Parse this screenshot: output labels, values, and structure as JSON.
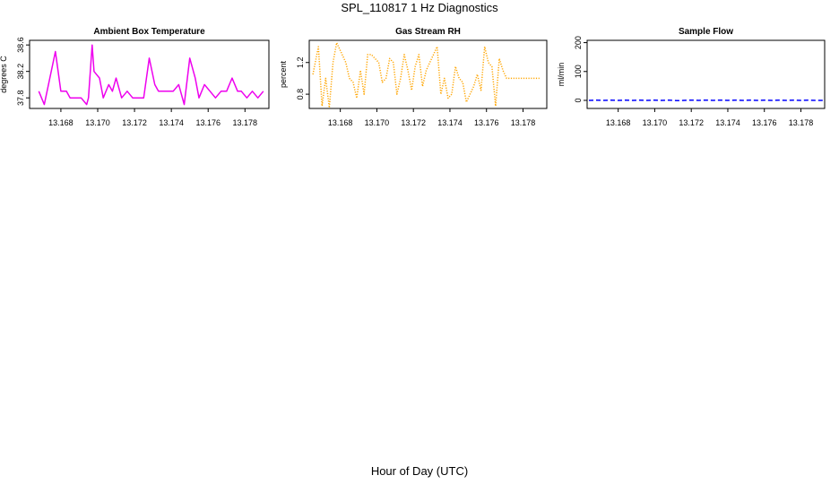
{
  "page": {
    "title": "SPL_110817  1 Hz Diagnostics",
    "xlabel": "Hour of Day (UTC)"
  },
  "chart_data": [
    {
      "type": "line",
      "title": "Ambient Box Temperature",
      "xlabel": "",
      "ylabel": "degrees C",
      "color": "#ee00ee",
      "line_style": "solid",
      "xlim": [
        13.1663,
        13.1793
      ],
      "ylim": [
        37.64,
        38.67
      ],
      "xticks": [
        13.168,
        13.17,
        13.172,
        13.174,
        13.176,
        13.178
      ],
      "xtick_labels": [
        "13.168",
        "13.170",
        "13.172",
        "13.174",
        "13.176",
        "13.178"
      ],
      "yticks": [
        37.8,
        38.2,
        38.6
      ],
      "ytick_labels": [
        "37.8",
        "38.2",
        "38.6"
      ],
      "x": [
        13.1668,
        13.1671,
        13.1674,
        13.1677,
        13.168,
        13.1683,
        13.1685,
        13.1688,
        13.1691,
        13.1694,
        13.1695,
        13.1697,
        13.1698,
        13.1701,
        13.1703,
        13.1706,
        13.1708,
        13.171,
        13.1713,
        13.1716,
        13.1719,
        13.1722,
        13.1725,
        13.1728,
        13.1731,
        13.1733,
        13.1735,
        13.1738,
        13.1741,
        13.1744,
        13.1747,
        13.175,
        13.1753,
        13.1755,
        13.1758,
        13.1761,
        13.1764,
        13.1767,
        13.177,
        13.1773,
        13.1776,
        13.1778,
        13.1781,
        13.1784,
        13.1787,
        13.179
      ],
      "values": [
        37.9,
        37.7,
        38.1,
        38.5,
        37.9,
        37.9,
        37.8,
        37.8,
        37.8,
        37.7,
        37.8,
        38.6,
        38.2,
        38.1,
        37.8,
        38.0,
        37.9,
        38.1,
        37.8,
        37.9,
        37.8,
        37.8,
        37.8,
        38.4,
        38.0,
        37.9,
        37.9,
        37.9,
        37.9,
        38.0,
        37.7,
        38.4,
        38.1,
        37.8,
        38.0,
        37.9,
        37.8,
        37.9,
        37.9,
        38.1,
        37.9,
        37.9,
        37.8,
        37.9,
        37.8,
        37.9
      ]
    },
    {
      "type": "line",
      "title": "Gas Stream RH",
      "xlabel": "",
      "ylabel": "percent",
      "color": "#ffa500",
      "line_style": "dotted",
      "xlim": [
        13.1663,
        13.1793
      ],
      "ylim": [
        0.62,
        1.48
      ],
      "xticks": [
        13.168,
        13.17,
        13.172,
        13.174,
        13.176,
        13.178
      ],
      "xtick_labels": [
        "13.168",
        "13.170",
        "13.172",
        "13.174",
        "13.176",
        "13.178"
      ],
      "yticks": [
        0.8,
        1.2
      ],
      "ytick_labels": [
        "0.8",
        "1.2"
      ],
      "x": [
        13.1665,
        13.1668,
        13.167,
        13.1672,
        13.1674,
        13.1676,
        13.1678,
        13.168,
        13.1683,
        13.1685,
        13.1687,
        13.1689,
        13.1691,
        13.1693,
        13.1695,
        13.1697,
        13.1699,
        13.1701,
        13.1703,
        13.1705,
        13.1707,
        13.1709,
        13.1711,
        13.1713,
        13.1715,
        13.1717,
        13.1719,
        13.1721,
        13.1723,
        13.1725,
        13.1727,
        13.1729,
        13.1731,
        13.1733,
        13.1735,
        13.1737,
        13.1739,
        13.1741,
        13.1743,
        13.1745,
        13.1747,
        13.1749,
        13.1751,
        13.1753,
        13.1755,
        13.1757,
        13.1759,
        13.1761,
        13.1763,
        13.1765,
        13.1767,
        13.1769,
        13.1771,
        13.1773,
        13.1775,
        13.1777,
        13.1779,
        13.1781,
        13.1783,
        13.1785,
        13.1787,
        13.1789
      ],
      "values": [
        1.05,
        1.4,
        0.65,
        1.0,
        0.63,
        1.2,
        1.45,
        1.35,
        1.2,
        1.0,
        0.95,
        0.75,
        1.1,
        0.8,
        1.3,
        1.3,
        1.25,
        1.2,
        0.95,
        1.0,
        1.25,
        1.2,
        0.8,
        1.0,
        1.3,
        1.1,
        0.85,
        1.15,
        1.3,
        0.9,
        1.1,
        1.2,
        1.3,
        1.4,
        0.8,
        1.0,
        0.75,
        0.8,
        1.15,
        1.0,
        0.95,
        0.7,
        0.8,
        0.9,
        1.05,
        0.85,
        1.4,
        1.2,
        1.15,
        0.65,
        1.25,
        1.1,
        1.0,
        1.0,
        1.0,
        1.0,
        1.0,
        1.0,
        1.0,
        1.0,
        1.0,
        1.0
      ]
    },
    {
      "type": "line",
      "title": "Sample Flow",
      "xlabel": "",
      "ylabel": "ml/min",
      "color": "#0000ff",
      "line_style": "dashed",
      "xlim": [
        13.1663,
        13.1793
      ],
      "ylim": [
        -28,
        208
      ],
      "xticks": [
        13.168,
        13.17,
        13.172,
        13.174,
        13.176,
        13.178
      ],
      "xtick_labels": [
        "13.168",
        "13.170",
        "13.172",
        "13.174",
        "13.176",
        "13.178"
      ],
      "yticks": [
        0,
        100,
        200
      ],
      "ytick_labels": [
        "0",
        "100",
        "200"
      ],
      "x": [
        13.1664,
        13.1668,
        13.1672,
        13.1676,
        13.168,
        13.1684,
        13.1688,
        13.1692,
        13.1696,
        13.17,
        13.1704,
        13.1708,
        13.1712,
        13.1716,
        13.172,
        13.1724,
        13.1728,
        13.1732,
        13.1736,
        13.174,
        13.1744,
        13.1748,
        13.1752,
        13.1756,
        13.176,
        13.1764,
        13.1768,
        13.1772,
        13.1776,
        13.178,
        13.1784,
        13.1788,
        13.1792
      ],
      "values": [
        0,
        1,
        0,
        1,
        0,
        1,
        0,
        1,
        0,
        1,
        0,
        1,
        -1,
        0,
        1,
        0,
        1,
        0,
        1,
        0,
        1,
        0,
        1,
        0,
        1,
        0,
        1,
        0,
        1,
        0,
        1,
        0,
        0
      ]
    }
  ]
}
